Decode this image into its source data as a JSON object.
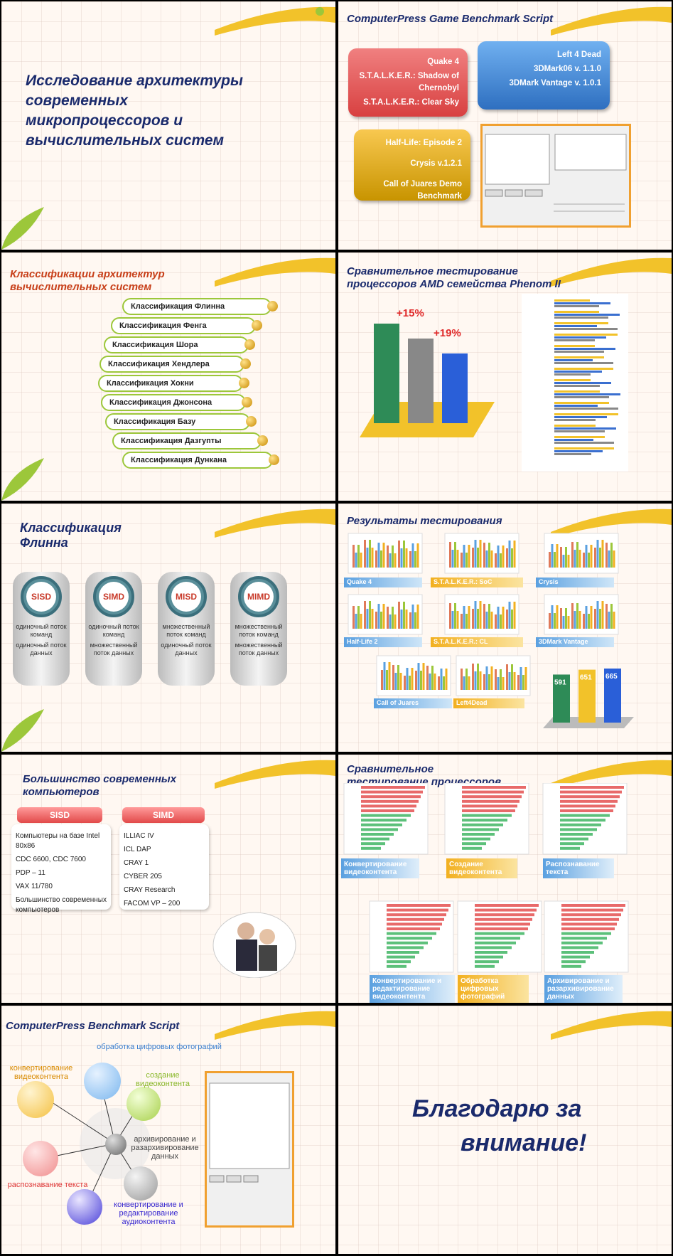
{
  "slides": {
    "s1": {
      "title": "Исследование архитектуры современных микропроцессоров и вычислительных систем"
    },
    "s2": {
      "title": "ComputerPress Game Benchmark Script",
      "red": [
        "Quake 4",
        "S.T.A.L.K.E.R.: Shadow of Chernobyl",
        "S.T.A.L.K.E.R.: Clear Sky"
      ],
      "blue": [
        "Left 4 Dead",
        "3DMark06 v. 1.1.0",
        "3DMark Vantage v. 1.0.1"
      ],
      "yellow": [
        "Half-Life: Episode 2",
        "Crysis v.1.2.1",
        "Call of Juares Demo Benchmark"
      ]
    },
    "s3": {
      "title": "Классификации архитектур вычислительных систем",
      "items": [
        "Классификация Флинна",
        "Классификация Фенга",
        "Классификация Шора",
        "Классификация Хендлера",
        "Классификация Хокни",
        "Классификация Джонсона",
        "Классификация Базу",
        "Классификация Дазгупты",
        "Классификация Дункана"
      ]
    },
    "s4": {
      "title": "Сравнительное тестирование процессоров AMD семейства Phenom II",
      "pct1": "+15%",
      "pct2": "+19%"
    },
    "s5": {
      "title": "Классификация Флинна",
      "cards": [
        {
          "abbr": "SISD",
          "l1": "одиночный поток команд",
          "l2": "одиночный поток данных"
        },
        {
          "abbr": "SIMD",
          "l1": "одиночный поток команд",
          "l2": "множественный поток данных"
        },
        {
          "abbr": "MISD",
          "l1": "множественный поток команд",
          "l2": "одиночный поток данных"
        },
        {
          "abbr": "MIMD",
          "l1": "множественный поток команд",
          "l2": "множественный поток данных"
        }
      ]
    },
    "s6": {
      "title": "Результаты тестирования",
      "labels": [
        "Quake 4",
        "S.T.A.L.K.E.R.: SoC",
        "Crysis",
        "Half-Life 2",
        "S.T.A.L.K.E.R.: CL",
        "3DMark Vantage",
        "Call of Juares",
        "Left4Dead"
      ],
      "scores": [
        "591",
        "651",
        "665"
      ]
    },
    "s7": {
      "title": "Большинство современных компьютеров",
      "sisd": "SISD",
      "simd": "SIMD",
      "sisd_items": [
        "Компьютеры на базе Intel 80x86",
        "CDC 6600, CDC 7600",
        "PDP – 11",
        "VAX 11/780",
        "Большинство современных компьютеров"
      ],
      "simd_items": [
        "ILLIAC IV",
        "ICL DAP",
        "CRAY 1",
        "CYBER 205",
        "CRAY Research",
        "FACOM VP – 200"
      ]
    },
    "s8": {
      "title": "Сравнительное тестирование процессоров Intel и AMD",
      "labels": [
        "Конвертирование видеоконтента",
        "Создание видеоконтента",
        "Распознавание текста",
        "Конвертирование и редактирование видеоконтента",
        "Обработка цифровых фотографий",
        "Архивирование и разархивирование данных"
      ]
    },
    "s9": {
      "title": "ComputerPress Benchmark Script",
      "top": "обработка цифровых фотографий",
      "left": "конвертирование видеоконтента",
      "right": "создание видеоконтента",
      "center": "архивирование и разархивирование данных",
      "bottomleft": "распознавание текста",
      "bottom": "конвертирование и редактирование аудиоконтента"
    },
    "s10": {
      "thanks1": "Благодарю за",
      "thanks2": "внимание!"
    }
  },
  "colors": {
    "title": "#1a2a6c",
    "accent_orange": "#c8401a",
    "green": "#9cc73a",
    "yellow": "#f2b020",
    "blue": "#3a7fd0",
    "red": "#e24a4a"
  },
  "chart_data": [
    {
      "type": "bar",
      "title": "",
      "categories": [
        "1",
        "2",
        "3"
      ],
      "values": [
        100,
        85,
        70
      ]
    },
    {
      "type": "bar",
      "title": "",
      "categories": [
        "1",
        "2",
        "3"
      ],
      "values": [
        591,
        651,
        665
      ]
    }
  ]
}
